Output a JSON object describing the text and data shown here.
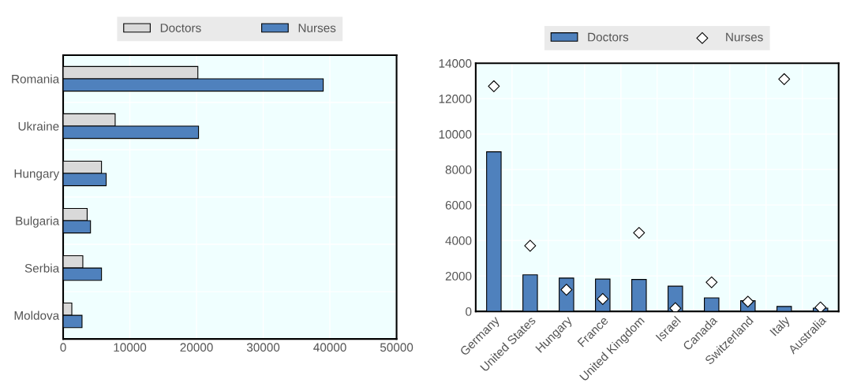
{
  "chart_data": [
    {
      "type": "bar",
      "orientation": "horizontal",
      "categories": [
        "Romania",
        "Ukraine",
        "Hungary",
        "Bulgaria",
        "Serbia",
        "Moldova"
      ],
      "series": [
        {
          "name": "Doctors",
          "color": "#d9d9d9",
          "values": [
            20200,
            7800,
            5750,
            3600,
            2950,
            1300
          ]
        },
        {
          "name": "Nurses",
          "color": "#4f81bd",
          "values": [
            39000,
            20300,
            6450,
            4100,
            5750,
            2830
          ]
        }
      ],
      "xlim": [
        0,
        50000
      ],
      "xticks": [
        0,
        10000,
        20000,
        30000,
        40000,
        50000
      ],
      "grid": true,
      "legend": "top"
    },
    {
      "type": "bar",
      "categories": [
        "Germany",
        "United States",
        "Hungary",
        "France",
        "United Kingdom",
        "Israel",
        "Canada",
        "Switzerland",
        "Italy",
        "Australia"
      ],
      "series": [
        {
          "name": "Doctors",
          "color": "#4f81bd",
          "values": [
            9000,
            2060,
            1880,
            1820,
            1800,
            1420,
            760,
            600,
            280,
            180
          ]
        },
        {
          "name": "Nurses",
          "type": "scatter",
          "marker": "diamond",
          "color": "#ffffff",
          "values": [
            12700,
            3700,
            1220,
            700,
            4430,
            180,
            1640,
            550,
            13100,
            220
          ]
        }
      ],
      "ylim": [
        0,
        14000
      ],
      "yticks": [
        0,
        2000,
        4000,
        6000,
        8000,
        10000,
        12000,
        14000
      ],
      "grid": true,
      "legend": "top"
    }
  ]
}
